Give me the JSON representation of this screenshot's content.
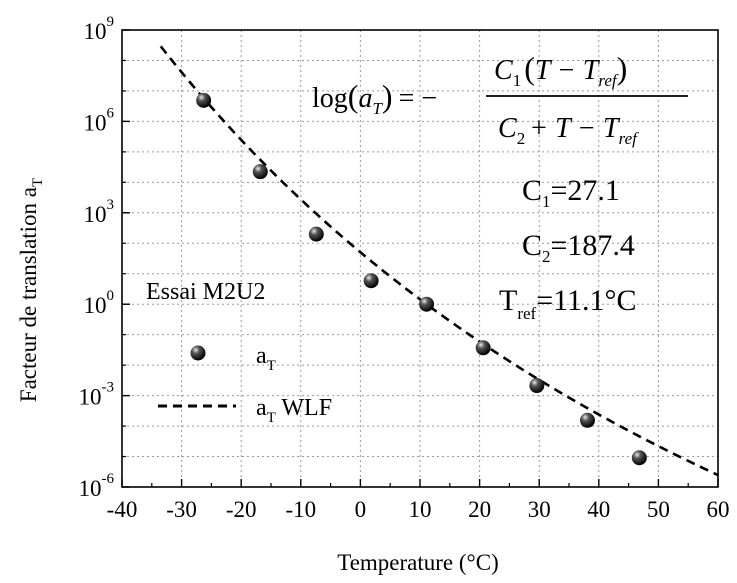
{
  "chart_data": {
    "type": "scatter",
    "xlabel": "Temperature (°C)",
    "ylabel": "Facteur de translation a",
    "ylabel_sub": "T",
    "x_ticks": [
      "-40",
      "-30",
      "-20",
      "-10",
      "0",
      "10",
      "20",
      "30",
      "40",
      "50",
      "60"
    ],
    "xlim": [
      -40,
      60
    ],
    "ylim_log10": [
      -6,
      9
    ],
    "y_scale": "log",
    "y_ticks": [
      {
        "base": "10",
        "exp": "9",
        "value_log10": 9
      },
      {
        "base": "10",
        "exp": "6",
        "value_log10": 6
      },
      {
        "base": "10",
        "exp": "3",
        "value_log10": 3
      },
      {
        "base": "10",
        "exp": "0",
        "value_log10": 0
      },
      {
        "base": "10",
        "exp": "-3",
        "value_log10": -3
      },
      {
        "base": "10",
        "exp": "-6",
        "value_log10": -6
      }
    ],
    "grid": true,
    "annotation": "Essai M2U2",
    "formula": {
      "lhs_log": "log",
      "lhs_a": "a",
      "lhs_sub": "T",
      "equals_minus": "= −",
      "num_C": "C",
      "num_C_sub": "1",
      "num_rest": "T − T",
      "num_sub": "ref",
      "den_C": "C",
      "den_C_sub": "2",
      "den_rest": "+ T − T",
      "den_sub": "ref"
    },
    "params": [
      {
        "sym": "C",
        "sub": "1",
        "val": "=27.1"
      },
      {
        "sym": "C",
        "sub": "2",
        "val": "=187.4"
      },
      {
        "sym": "T",
        "sub": "ref",
        "val": "=11.1°C"
      }
    ],
    "legend": {
      "placement": "left",
      "items": [
        {
          "label": "a",
          "sub": "T",
          "suffix": "",
          "marker": "ball"
        },
        {
          "label": "a",
          "sub": "T",
          "suffix": " WLF",
          "marker": "dashed-line"
        }
      ]
    },
    "series": [
      {
        "name": "a_T",
        "kind": "points",
        "x": [
          -26.3,
          -16.8,
          -7.4,
          1.8,
          11.1,
          20.6,
          29.6,
          38.1,
          46.8
        ],
        "y_log10": [
          6.69,
          4.35,
          2.3,
          0.77,
          0.0,
          -1.43,
          -2.67,
          -3.81,
          -5.04
        ]
      },
      {
        "name": "a_T WLF",
        "kind": "curve",
        "wlf": {
          "C1": 27.1,
          "C2": 187.4,
          "Tref": 11.1
        },
        "x_range": [
          -33.5,
          60
        ]
      }
    ]
  }
}
